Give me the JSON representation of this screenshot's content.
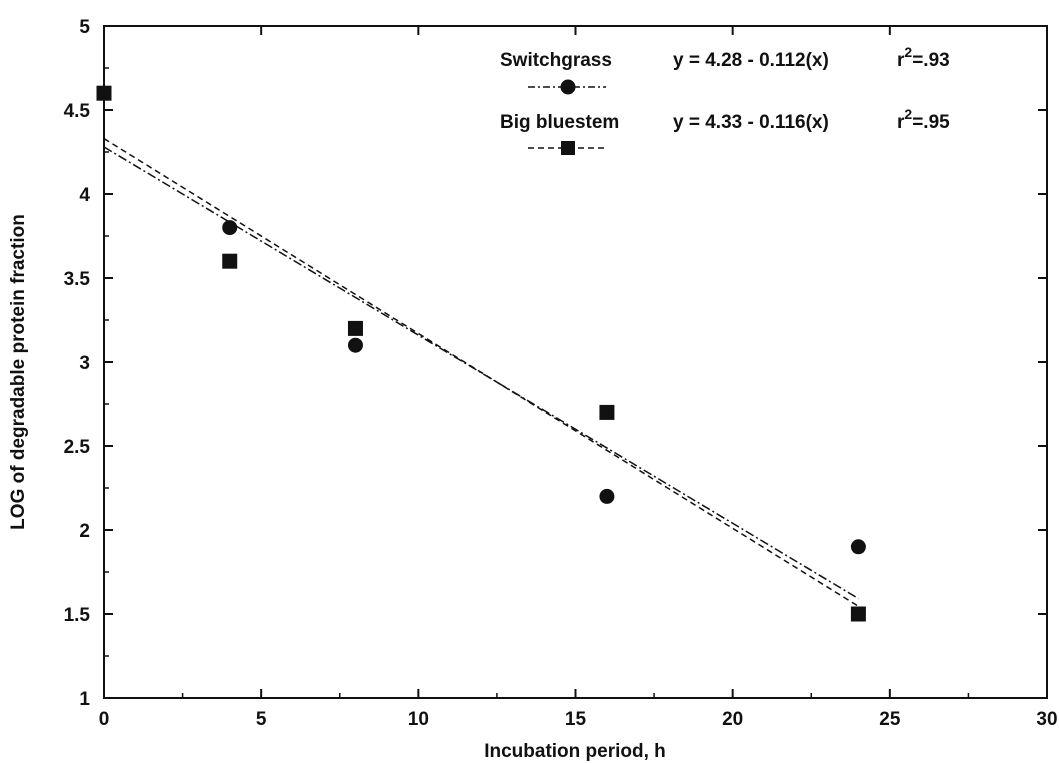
{
  "chart_data": {
    "type": "scatter",
    "title": "",
    "xlabel": "Incubation period, h",
    "ylabel": "LOG of degradable protein fraction",
    "xlim": [
      0,
      30
    ],
    "ylim": [
      1,
      5
    ],
    "xticks": [
      "0",
      "5",
      "10",
      "15",
      "20",
      "25",
      "30"
    ],
    "yticks": [
      "1",
      "1.5",
      "2",
      "2.5",
      "3",
      "3.5",
      "4",
      "4.5",
      "5"
    ],
    "grid": false,
    "legend_position": "top-right",
    "series": [
      {
        "name": "Switchgrass",
        "marker": "circle",
        "line_style": "dash-dot",
        "equation": "y = 4.28 - 0.112(x)",
        "r2_prefix": "r",
        "r2_sup": "2",
        "r2_value": "=.93",
        "intercept": 4.28,
        "slope": -0.112,
        "points": [
          [
            0,
            4.6
          ],
          [
            4,
            3.8
          ],
          [
            8,
            3.1
          ],
          [
            16,
            2.2
          ],
          [
            24,
            1.9
          ]
        ]
      },
      {
        "name": "Big bluestem",
        "marker": "square",
        "line_style": "dashed",
        "equation": "y = 4.33 - 0.116(x)",
        "r2_prefix": "r",
        "r2_sup": "2",
        "r2_value": "=.95",
        "intercept": 4.33,
        "slope": -0.116,
        "points": [
          [
            0,
            4.6
          ],
          [
            4,
            3.6
          ],
          [
            8,
            3.2
          ],
          [
            16,
            2.7
          ],
          [
            24,
            1.5
          ]
        ]
      }
    ]
  }
}
